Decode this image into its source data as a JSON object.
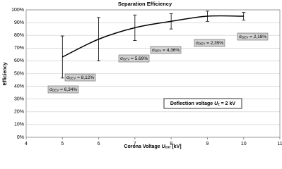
{
  "chart_data": {
    "type": "line",
    "title": "Separation Efficiency",
    "y_label": "Efficiency",
    "x_label": {
      "text": "Corona Voltage ",
      "symbol": "U",
      "sub": "cor",
      "unit": " [kV]"
    },
    "x": [
      5,
      6,
      7,
      8,
      9,
      10
    ],
    "values": [
      63,
      77,
      86,
      91,
      95,
      95
    ],
    "errors": [
      16.5,
      17,
      10,
      6,
      4,
      3
    ],
    "color": "#000000",
    "xlim": [
      4,
      11
    ],
    "xticks": [
      4,
      5,
      6,
      7,
      8,
      9,
      10,
      11
    ],
    "ylim": [
      0,
      100
    ],
    "yticks": [
      {
        "value": 0,
        "label": "0%"
      },
      {
        "value": 10,
        "label": "10%"
      },
      {
        "value": 20,
        "label": "20%"
      },
      {
        "value": 30,
        "label": "30%"
      },
      {
        "value": 40,
        "label": "40%"
      },
      {
        "value": 50,
        "label": "50%"
      },
      {
        "value": 60,
        "label": "60%"
      },
      {
        "value": 70,
        "label": "70%"
      },
      {
        "value": 80,
        "label": "80%"
      },
      {
        "value": 90,
        "label": "90%"
      },
      {
        "value": 100,
        "label": "100%"
      }
    ],
    "grid": true,
    "annotations": [
      {
        "symbol": "σ",
        "sub": "DEV",
        "text": " = 6,34%"
      },
      {
        "symbol": "σ",
        "sub": "DEV",
        "text": " = 8,12%"
      },
      {
        "symbol": "σ",
        "sub": "DEV",
        "text": " = 5,69%"
      },
      {
        "symbol": "σ",
        "sub": "DEV",
        "text": " = 4,36%"
      },
      {
        "symbol": "σ",
        "sub": "DEV",
        "text": " = 2,35%"
      },
      {
        "symbol": "σ",
        "sub": "DEV",
        "text": " = 2,18%"
      }
    ],
    "note": {
      "text": "Deflection voltage ",
      "symbol": "U",
      "sub": "z",
      "value": " = 2 kV"
    }
  }
}
